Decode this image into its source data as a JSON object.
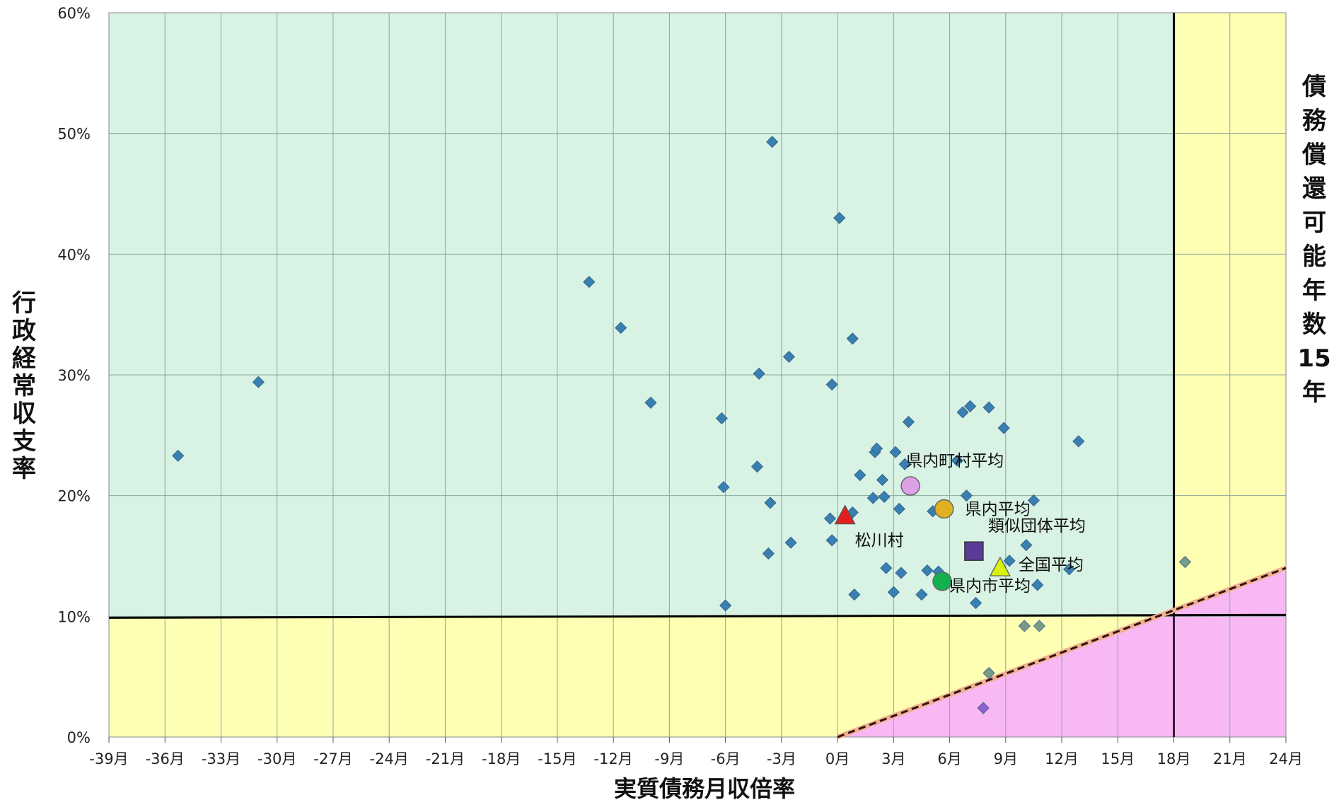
{
  "chart_data": {
    "type": "scatter",
    "title": "",
    "xlabel": "実質債務月収倍率",
    "ylabel": "行政経常収支率",
    "right_label": "債務償還可能年数15年",
    "xlim": [
      -39,
      24
    ],
    "ylim": [
      0,
      60
    ],
    "x_ticks": [
      -39,
      -36,
      -33,
      -30,
      -27,
      -24,
      -21,
      -18,
      -15,
      -12,
      -9,
      -6,
      -3,
      0,
      3,
      6,
      9,
      12,
      15,
      18,
      21,
      24
    ],
    "x_tick_labels": [
      "-39月",
      "-36月",
      "-33月",
      "-30月",
      "-27月",
      "-24月",
      "-21月",
      "-18月",
      "-15月",
      "-12月",
      "-9月",
      "-6月",
      "-3月",
      "0月",
      "3月",
      "6月",
      "9月",
      "12月",
      "15月",
      "18月",
      "21月",
      "24月"
    ],
    "y_ticks": [
      0,
      10,
      20,
      30,
      40,
      50,
      60
    ],
    "y_tick_labels": [
      "0%",
      "10%",
      "20%",
      "30%",
      "40%",
      "50%",
      "60%"
    ],
    "grid": true,
    "threshold_x": 18,
    "threshold_y": 10,
    "boundary_line": {
      "from": [
        0,
        0
      ],
      "to": [
        24,
        14
      ]
    },
    "zone_colors": {
      "safe": "#d8f2e4",
      "caution": "#ffffb3",
      "danger": "#f8b8f4"
    },
    "series": [
      {
        "color": "#3a7fb0",
        "points": [
          [
            -35.3,
            23.3
          ],
          [
            -31.0,
            29.4
          ],
          [
            -13.3,
            37.7
          ],
          [
            -11.6,
            33.9
          ],
          [
            -10.0,
            27.7
          ],
          [
            -3.5,
            49.3
          ],
          [
            0.1,
            43.0
          ],
          [
            -6.2,
            26.4
          ],
          [
            -4.2,
            30.1
          ],
          [
            -2.6,
            31.5
          ],
          [
            -0.3,
            29.2
          ],
          [
            0.8,
            33.0
          ],
          [
            -6.1,
            20.7
          ],
          [
            -4.3,
            22.4
          ],
          [
            -3.6,
            19.4
          ],
          [
            -3.7,
            15.2
          ],
          [
            -2.5,
            16.1
          ],
          [
            -6.0,
            10.9
          ],
          [
            -0.4,
            18.1
          ],
          [
            -0.3,
            16.3
          ],
          [
            0.8,
            18.6
          ],
          [
            0.9,
            11.8
          ],
          [
            1.2,
            21.7
          ],
          [
            1.9,
            19.8
          ],
          [
            2.0,
            23.6
          ],
          [
            2.1,
            23.9
          ],
          [
            2.4,
            21.3
          ],
          [
            2.5,
            19.9
          ],
          [
            2.6,
            14.0
          ],
          [
            3.0,
            12.0
          ],
          [
            3.1,
            23.6
          ],
          [
            3.3,
            18.9
          ],
          [
            3.4,
            13.6
          ],
          [
            3.6,
            22.6
          ],
          [
            3.8,
            26.1
          ],
          [
            4.5,
            11.8
          ],
          [
            4.8,
            13.8
          ],
          [
            5.1,
            18.7
          ],
          [
            5.4,
            13.7
          ],
          [
            6.4,
            22.9
          ],
          [
            6.7,
            26.9
          ],
          [
            6.9,
            20.0
          ],
          [
            7.1,
            27.4
          ],
          [
            7.4,
            11.1
          ],
          [
            8.1,
            27.3
          ],
          [
            8.9,
            25.6
          ],
          [
            9.2,
            14.6
          ],
          [
            10.1,
            15.9
          ],
          [
            10.5,
            19.6
          ],
          [
            10.7,
            12.6
          ],
          [
            12.4,
            13.9
          ],
          [
            12.9,
            24.5
          ]
        ]
      },
      {
        "color": "#7a9a88",
        "points": [
          [
            8.1,
            5.3
          ],
          [
            10.0,
            9.2
          ],
          [
            10.8,
            9.2
          ],
          [
            18.6,
            14.5
          ]
        ]
      },
      {
        "color": "#9060d0",
        "points": [
          [
            7.8,
            2.4
          ]
        ]
      }
    ],
    "annotations": [
      {
        "label": "県内町村平均",
        "x": 3.9,
        "y": 20.8,
        "marker": "circle",
        "color": "#dca0e6"
      },
      {
        "label": "県内平均",
        "x": 5.7,
        "y": 18.9,
        "marker": "circle",
        "color": "#e0b020"
      },
      {
        "label": "類似団体平均",
        "x": 7.3,
        "y": 15.4,
        "marker": "square",
        "color": "#5b3a98"
      },
      {
        "label": "全国平均",
        "x": 8.7,
        "y": 14.0,
        "marker": "triangle",
        "color": "#d9f010"
      },
      {
        "label": "県内市平均",
        "x": 5.6,
        "y": 12.9,
        "marker": "circle",
        "color": "#14b050"
      },
      {
        "label": "松川村",
        "x": 0.4,
        "y": 18.3,
        "marker": "triangle",
        "color": "#e02020"
      }
    ]
  }
}
